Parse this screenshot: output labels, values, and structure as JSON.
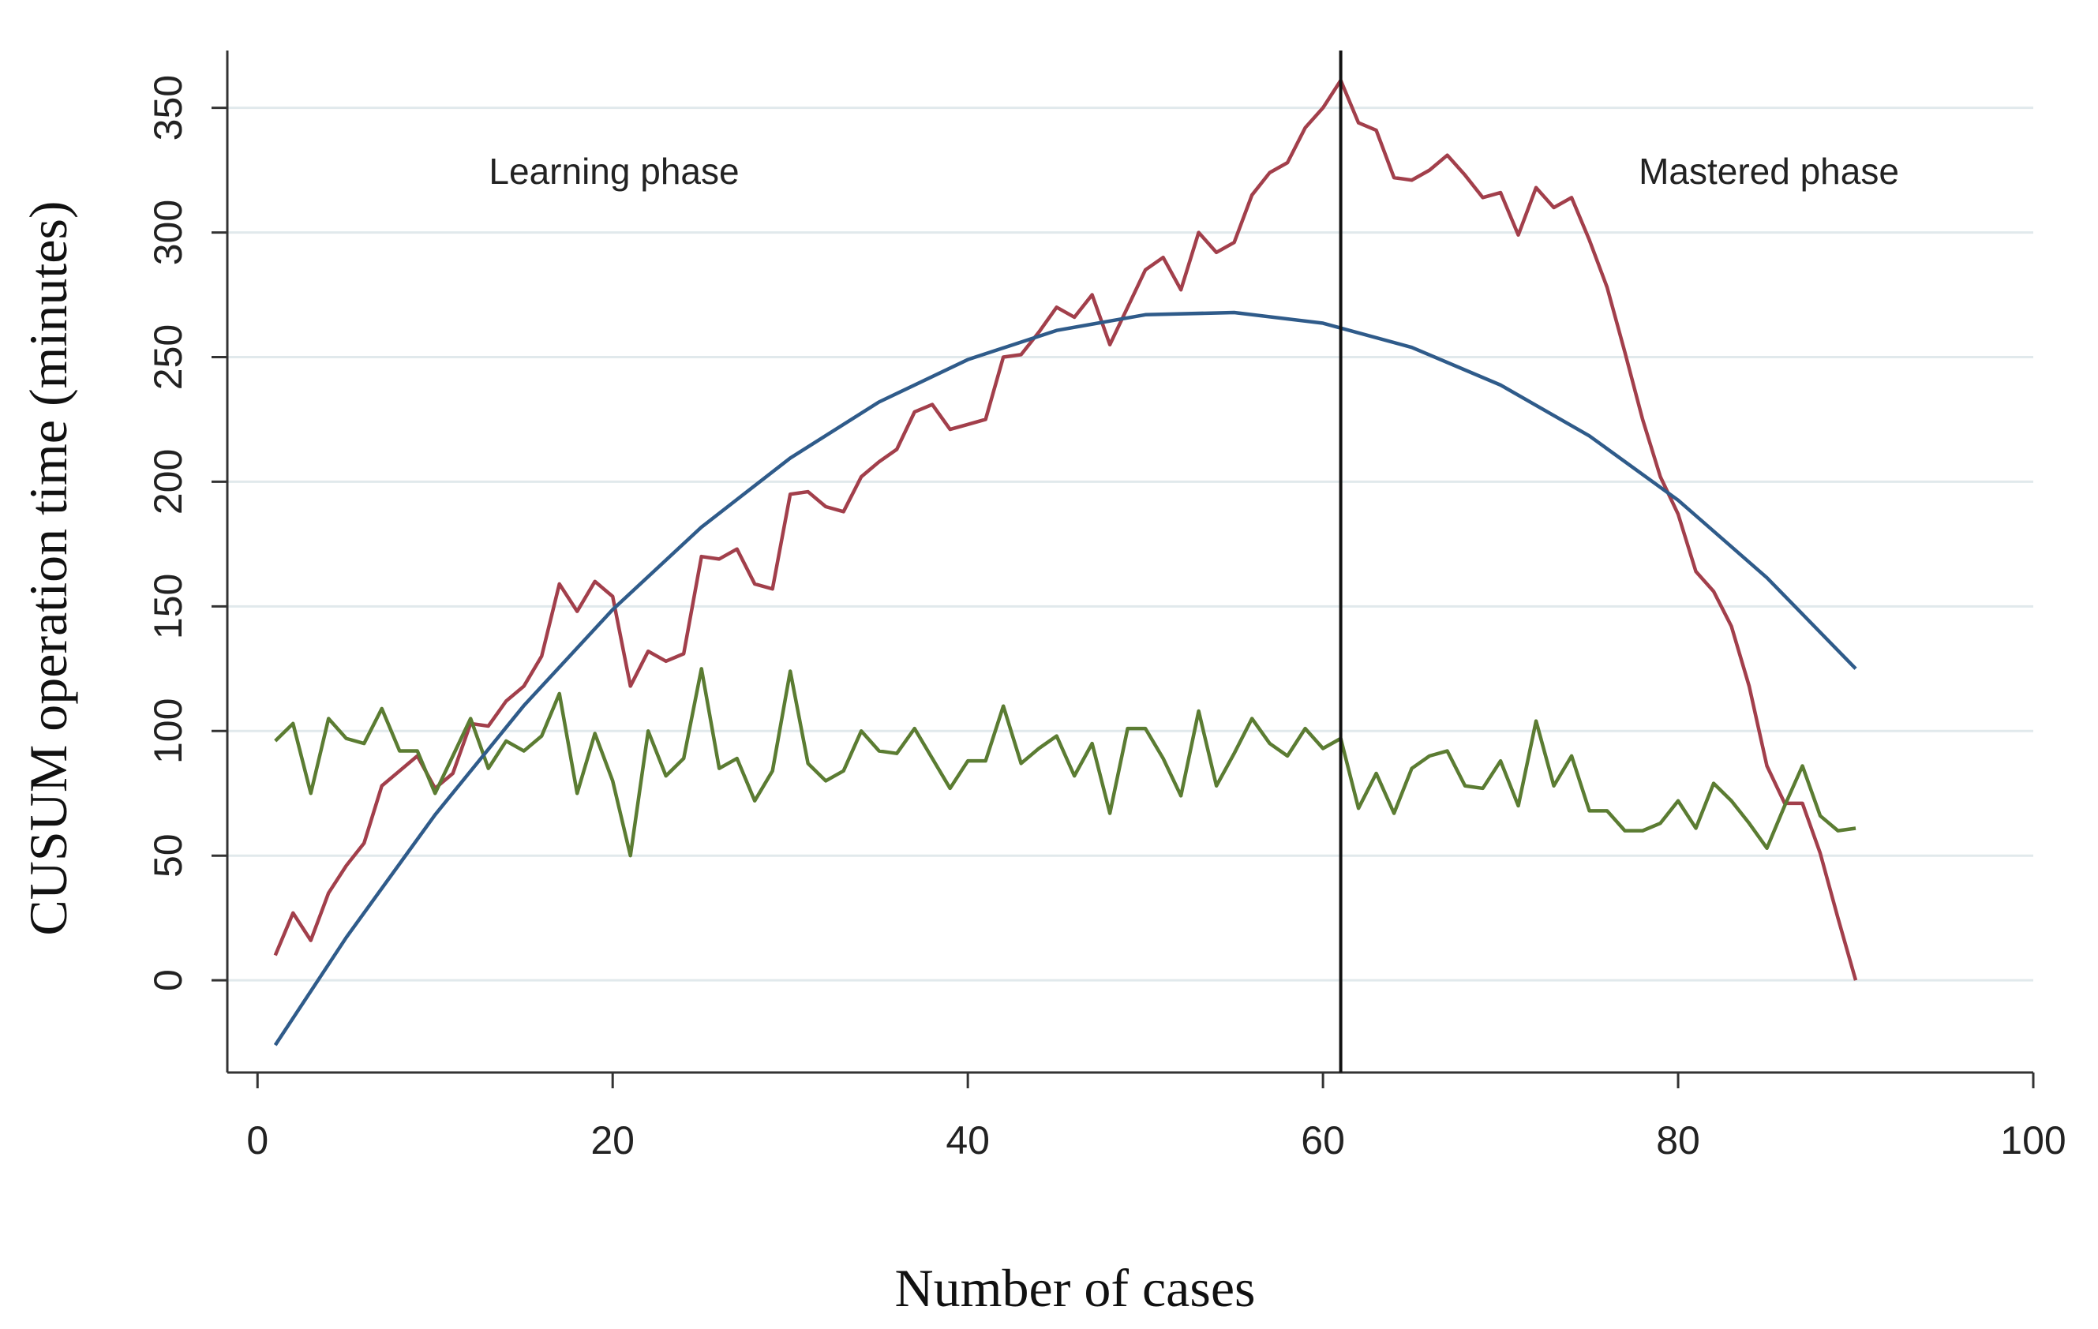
{
  "chart_data": {
    "type": "line",
    "xlabel": "Number of cases",
    "ylabel": "CUSUM operation time (minutes)",
    "annotations": [
      "Learning phase",
      "Mastered phase"
    ],
    "xlim": [
      -1.7,
      100
    ],
    "ylim": [
      -37,
      373
    ],
    "xticks": [
      0,
      20,
      40,
      60,
      80,
      100
    ],
    "yticks": [
      0,
      50,
      100,
      150,
      200,
      250,
      300,
      350
    ],
    "grid": true,
    "vline": 61,
    "x": [
      1,
      2,
      3,
      4,
      5,
      6,
      7,
      8,
      9,
      10,
      11,
      12,
      13,
      14,
      15,
      16,
      17,
      18,
      19,
      20,
      21,
      22,
      23,
      24,
      25,
      26,
      27,
      28,
      29,
      30,
      31,
      32,
      33,
      34,
      35,
      36,
      37,
      38,
      39,
      40,
      41,
      42,
      43,
      44,
      45,
      46,
      47,
      48,
      49,
      50,
      51,
      52,
      53,
      54,
      55,
      56,
      57,
      58,
      59,
      60,
      61,
      62,
      63,
      64,
      65,
      66,
      67,
      68,
      69,
      70,
      71,
      72,
      73,
      74,
      75,
      76,
      77,
      78,
      79,
      80,
      81,
      82,
      83,
      84,
      85,
      86,
      87,
      88,
      89,
      90
    ],
    "series": [
      {
        "color": "#a23f4b",
        "values": [
          10,
          27,
          16,
          35,
          46,
          55,
          78,
          84,
          90,
          77,
          83,
          103,
          102,
          112,
          118,
          130,
          159,
          148,
          160,
          154,
          118,
          132,
          128,
          131,
          170,
          169,
          173,
          159,
          157,
          195,
          196,
          190,
          188,
          202,
          208,
          213,
          228,
          231,
          221,
          223,
          225,
          250,
          251,
          260,
          270,
          266,
          275,
          255,
          270,
          285,
          290,
          277,
          300,
          292,
          296,
          315,
          324,
          328,
          342,
          350,
          361,
          344,
          341,
          322,
          321,
          325,
          331,
          323,
          314,
          316,
          299,
          318,
          310,
          314,
          297,
          278,
          252,
          225,
          202,
          187,
          164,
          156,
          142,
          118,
          86,
          71,
          71,
          51,
          25,
          0
        ]
      },
      {
        "color": "#5b7c32",
        "values": [
          96,
          103,
          75,
          105,
          97,
          95,
          109,
          92,
          92,
          75,
          90,
          105,
          85,
          96,
          92,
          98,
          115,
          75,
          99,
          80,
          50,
          100,
          82,
          89,
          125,
          85,
          89,
          72,
          84,
          124,
          87,
          80,
          84,
          100,
          92,
          91,
          101,
          89,
          77,
          88,
          88,
          110,
          87,
          93,
          98,
          82,
          95,
          67,
          101,
          101,
          89,
          74,
          108,
          78,
          91,
          105,
          95,
          90,
          101,
          93,
          97,
          69,
          83,
          67,
          85,
          90,
          92,
          78,
          77,
          88,
          70,
          104,
          78,
          90,
          68,
          68,
          60,
          60,
          63,
          72,
          61,
          79,
          72,
          63,
          53,
          70,
          86,
          66,
          60,
          61
        ]
      },
      {
        "color": "#2f5b8a",
        "x": [
          1,
          5,
          10,
          15,
          20,
          25,
          30,
          35,
          40,
          45,
          50,
          55,
          60,
          65,
          70,
          75,
          80,
          85,
          90
        ],
        "values": [
          -26,
          17.2,
          66.4,
          110.2,
          148.7,
          181.8,
          209.5,
          232,
          249,
          260.7,
          267,
          267.9,
          263.6,
          253.9,
          238.8,
          218.4,
          192.6,
          161.5,
          125
        ]
      }
    ]
  }
}
